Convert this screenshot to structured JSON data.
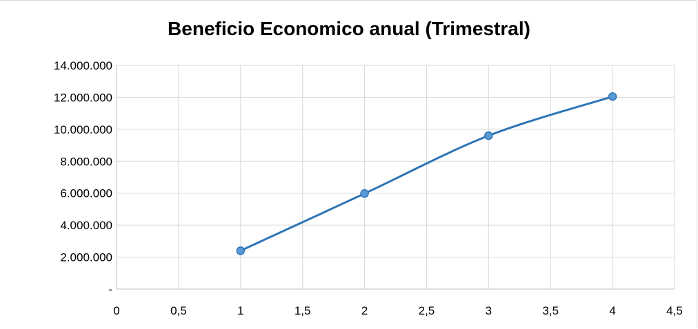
{
  "chart_data": {
    "type": "line",
    "title": "Beneficio Economico anual (Trimestral)",
    "xlabel": "",
    "ylabel": "",
    "xlim": [
      0,
      4.5
    ],
    "ylim": [
      0,
      14000000
    ],
    "x_ticks": [
      0,
      0.5,
      1,
      1.5,
      2,
      2.5,
      3,
      3.5,
      4,
      4.5
    ],
    "x_tick_labels": [
      "0",
      "0,5",
      "1",
      "1,5",
      "2",
      "2,5",
      "3",
      "3,5",
      "4",
      "4,5"
    ],
    "y_ticks": [
      0,
      2000000,
      4000000,
      6000000,
      8000000,
      10000000,
      12000000,
      14000000
    ],
    "y_tick_labels": [
      "-",
      "2.000.000",
      "4.000.000",
      "6.000.000",
      "8.000.000",
      "10.000.000",
      "12.000.000",
      "14.000.000"
    ],
    "grid": true,
    "legend": "none",
    "smooth": true,
    "series": [
      {
        "x": [
          1,
          2,
          3,
          4
        ],
        "y": [
          2400000,
          5980000,
          9600000,
          12050000
        ],
        "color": "#2e75b6",
        "marker": "circle",
        "marker_color": "#5b9bd5"
      }
    ]
  }
}
